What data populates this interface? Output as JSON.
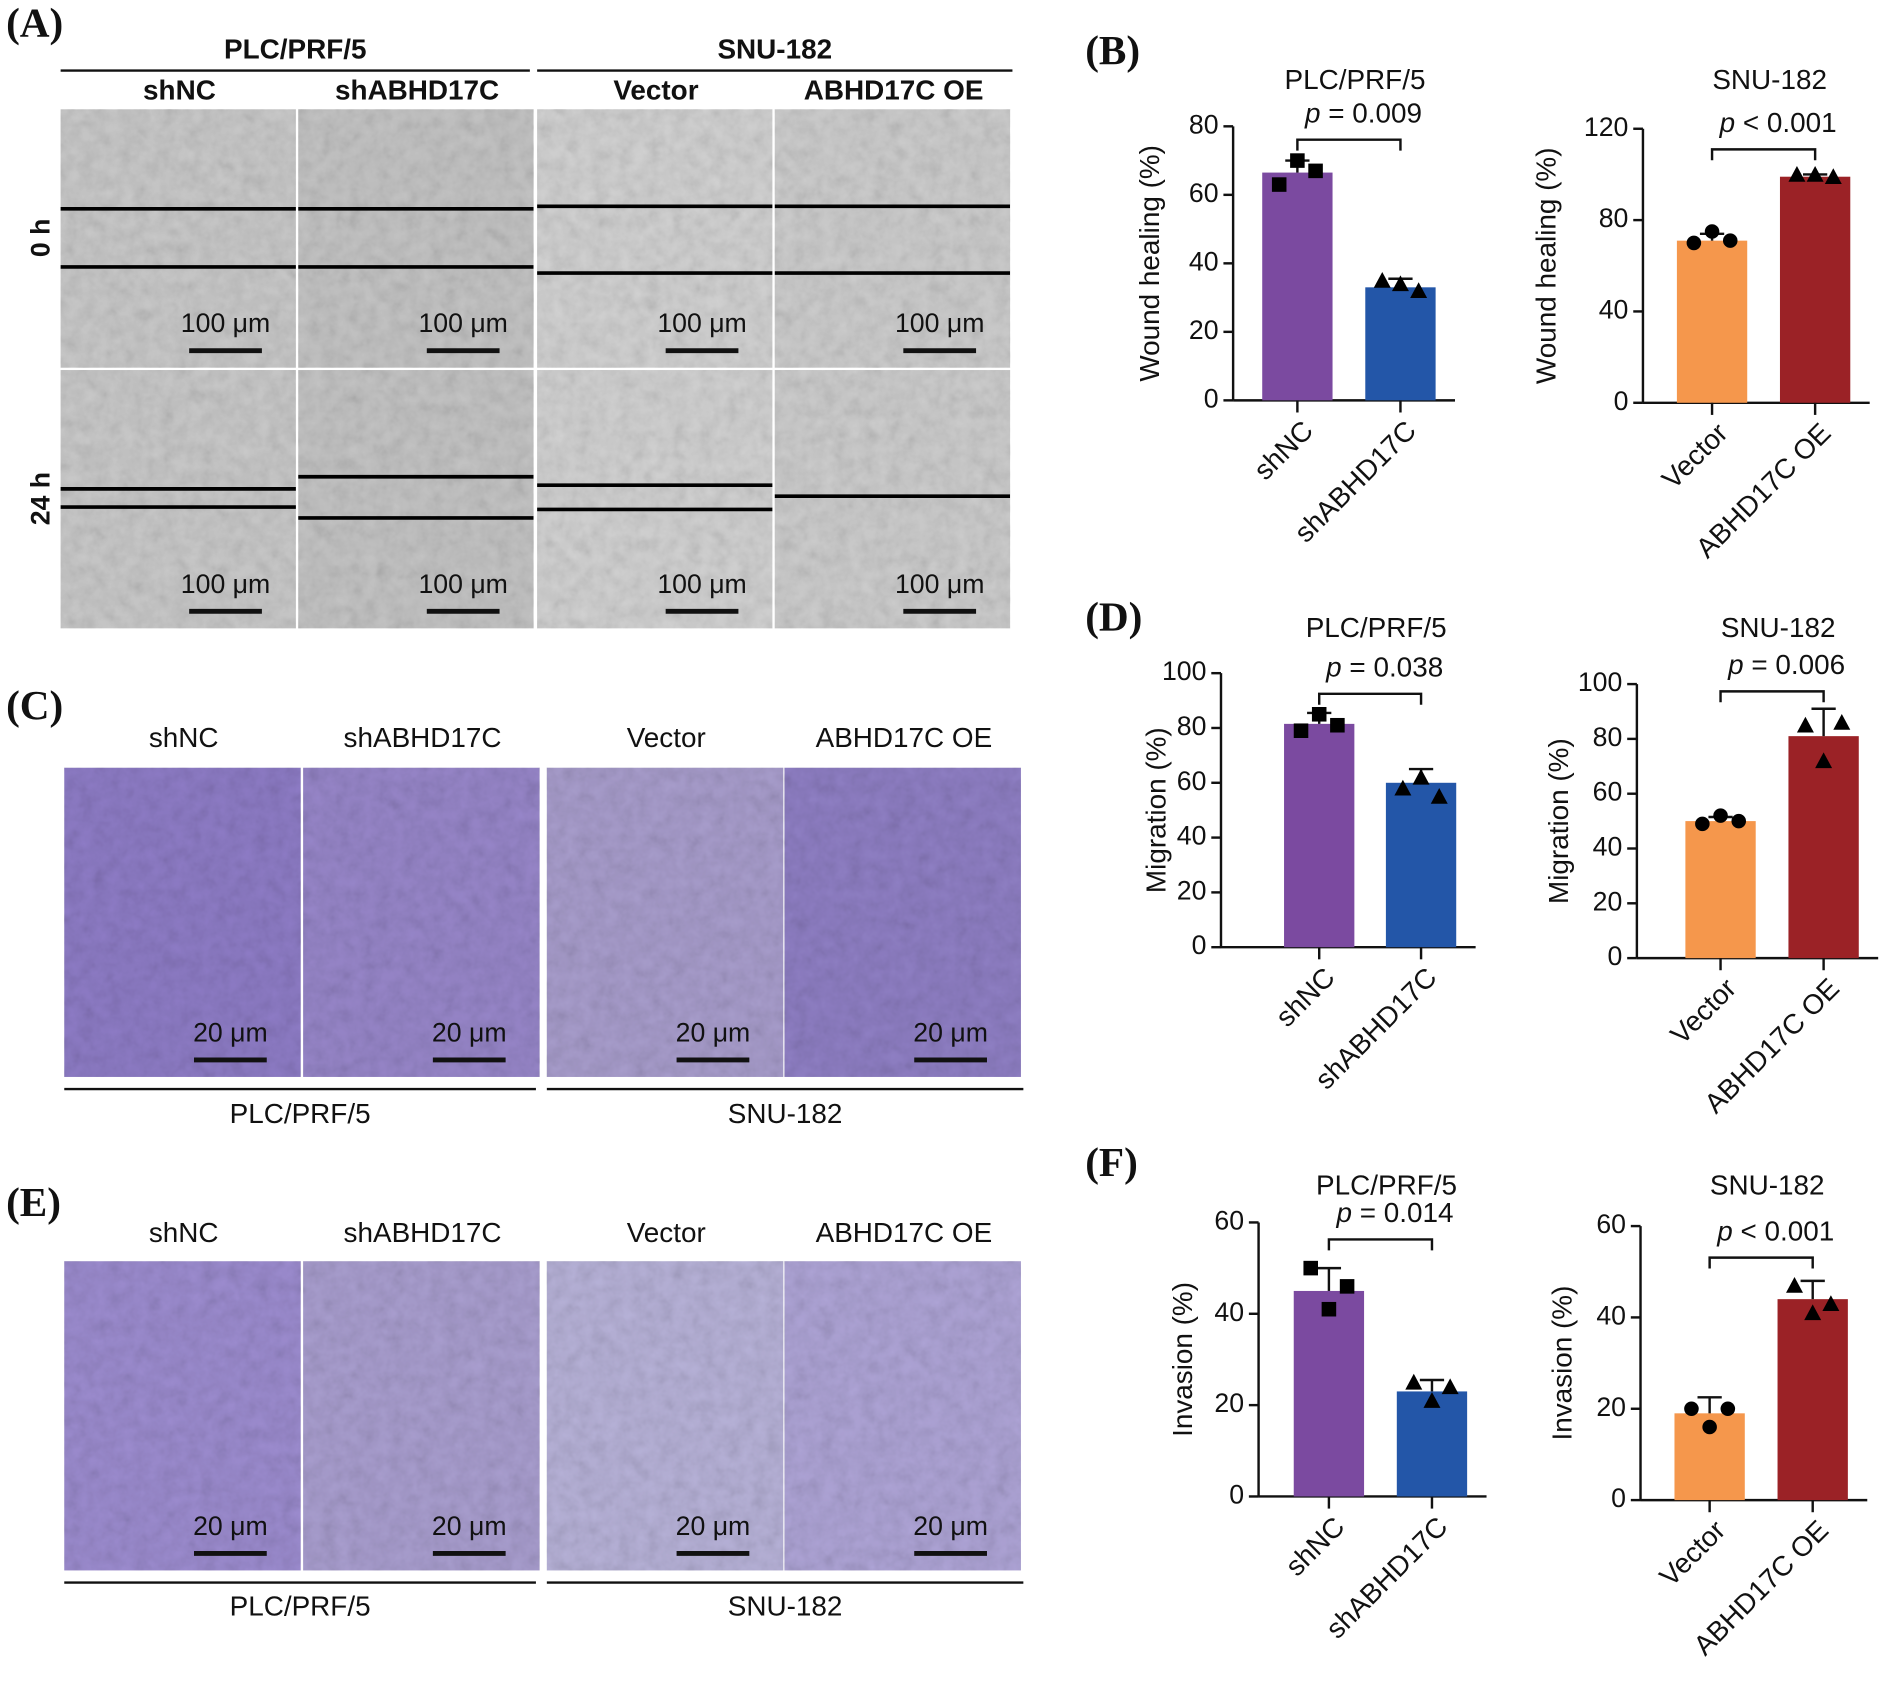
{
  "panel_labels": [
    "(A)",
    "(B)",
    "(C)",
    "(D)",
    "(E)",
    "(F)"
  ],
  "panel_a": {
    "groups": [
      "PLC/PRF/5",
      "SNU-182"
    ],
    "columns": [
      "shNC",
      "shABHD17C",
      "Vector",
      "ABHD17C OE"
    ],
    "rows": [
      "0 h",
      "24 h"
    ],
    "scale_bar": "100 μm"
  },
  "panel_c": {
    "groups": [
      "PLC/PRF/5",
      "SNU-182"
    ],
    "columns": [
      "shNC",
      "shABHD17C",
      "Vector",
      "ABHD17C OE"
    ],
    "scale_bar": "20 μm"
  },
  "panel_e": {
    "groups": [
      "PLC/PRF/5",
      "SNU-182"
    ],
    "columns": [
      "shNC",
      "shABHD17C",
      "Vector",
      "ABHD17C OE"
    ],
    "scale_bar": "20 μm"
  },
  "chart_data": [
    {
      "type": "bar",
      "title": "PLC/PRF/5",
      "y_label": "Wound healing (%)",
      "categories": [
        "shNC",
        "shABHD17C"
      ],
      "values": [
        66.5,
        33
      ],
      "errors": [
        3.5,
        2.5
      ],
      "points": [
        [
          63,
          70,
          67
        ],
        [
          35,
          34,
          32
        ]
      ],
      "markers": [
        "square",
        "triangle"
      ],
      "colors": [
        "#7b4aa0",
        "#2356a8"
      ],
      "annotation": "p = 0.009",
      "ylim": [
        0,
        80
      ],
      "yticks": [
        0,
        20,
        40,
        60,
        80
      ]
    },
    {
      "type": "bar",
      "title": "SNU-182",
      "y_label": "Wound healing (%)",
      "categories": [
        "Vector",
        "ABHD17C OE"
      ],
      "values": [
        71,
        99
      ],
      "errors": [
        3,
        1
      ],
      "points": [
        [
          70,
          75,
          71
        ],
        [
          100,
          100,
          99
        ]
      ],
      "markers": [
        "circle",
        "triangle"
      ],
      "colors": [
        "#f5974c",
        "#9b2226"
      ],
      "annotation": "p < 0.001",
      "ylim": [
        0,
        120
      ],
      "yticks": [
        0,
        40,
        80,
        120
      ]
    },
    {
      "type": "bar",
      "title": "PLC/PRF/5",
      "y_label": "Migration (%)",
      "categories": [
        "shNC",
        "shABHD17C"
      ],
      "values": [
        81.5,
        60
      ],
      "errors": [
        4,
        5
      ],
      "points": [
        [
          79,
          85,
          81
        ],
        [
          58,
          62,
          55
        ]
      ],
      "markers": [
        "square",
        "triangle"
      ],
      "colors": [
        "#7b4aa0",
        "#2356a8"
      ],
      "annotation": "p = 0.038",
      "ylim": [
        0,
        100
      ],
      "yticks": [
        0,
        20,
        40,
        60,
        80,
        100
      ]
    },
    {
      "type": "bar",
      "title": "SNU-182",
      "y_label": "Migration (%)",
      "categories": [
        "Vector",
        "ABHD17C OE"
      ],
      "values": [
        50,
        81
      ],
      "errors": [
        1.5,
        10
      ],
      "points": [
        [
          49,
          52,
          50
        ],
        [
          85,
          72,
          86
        ]
      ],
      "markers": [
        "circle",
        "triangle"
      ],
      "colors": [
        "#f5974c",
        "#9b2226"
      ],
      "annotation": "p = 0.006",
      "ylim": [
        0,
        100
      ],
      "yticks": [
        0,
        20,
        40,
        60,
        80,
        100
      ]
    },
    {
      "type": "bar",
      "title": "PLC/PRF/5",
      "y_label": "Invasion (%)",
      "categories": [
        "shNC",
        "shABHD17C"
      ],
      "values": [
        45,
        23
      ],
      "errors": [
        5,
        2.5
      ],
      "points": [
        [
          50,
          41,
          46
        ],
        [
          25,
          21,
          24
        ]
      ],
      "markers": [
        "square",
        "triangle"
      ],
      "colors": [
        "#7b4aa0",
        "#2356a8"
      ],
      "annotation": "p = 0.014",
      "ylim": [
        0,
        60
      ],
      "yticks": [
        0,
        20,
        40,
        60
      ]
    },
    {
      "type": "bar",
      "title": "SNU-182",
      "y_label": "Invasion (%)",
      "categories": [
        "Vector",
        "ABHD17C OE"
      ],
      "values": [
        19,
        44
      ],
      "errors": [
        3.5,
        4
      ],
      "points": [
        [
          20,
          16,
          20
        ],
        [
          47,
          41,
          43
        ]
      ],
      "markers": [
        "circle",
        "triangle"
      ],
      "colors": [
        "#f5974c",
        "#9b2226"
      ],
      "annotation": "p < 0.001",
      "ylim": [
        0,
        60
      ],
      "yticks": [
        0,
        20,
        40,
        60
      ]
    }
  ]
}
